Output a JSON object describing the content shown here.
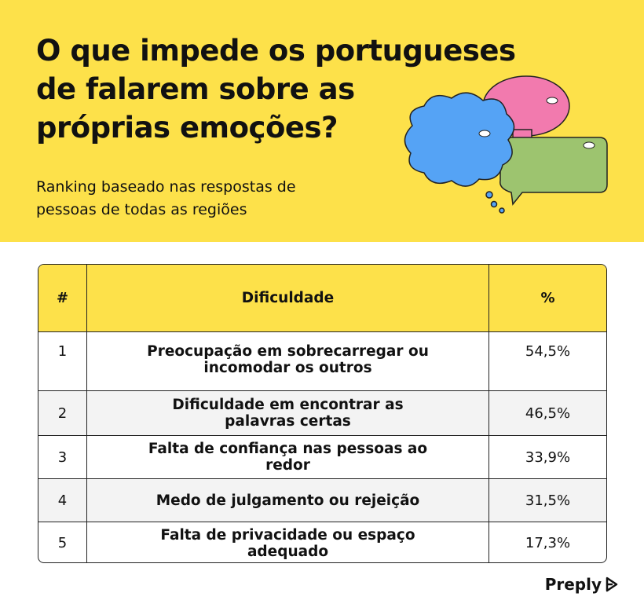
{
  "header": {
    "title_lines": [
      "O que impede os portugueses",
      "de falarem sobre as",
      "próprias emoções?"
    ],
    "subtitle_lines": [
      "Ranking baseado nas respostas de",
      "pessoas de todas as regiões"
    ]
  },
  "table": {
    "columns": [
      "#",
      "Dificuldade",
      "%"
    ],
    "rows": [
      [
        "1",
        "Preocupação em sobrecarregar ou incomodar os outros",
        "54,5%"
      ],
      [
        "2",
        "Dificuldade em encontrar as palavras certas",
        "46,5%"
      ],
      [
        "3",
        "Falta de confiança nas pessoas ao redor",
        "33,9%"
      ],
      [
        "4",
        "Medo de julgamento ou rejeição",
        "31,5%"
      ],
      [
        "5",
        "Falta de privacidade ou espaço adequado",
        "17,3%"
      ]
    ]
  },
  "footer": {
    "brand": "Preply"
  }
}
